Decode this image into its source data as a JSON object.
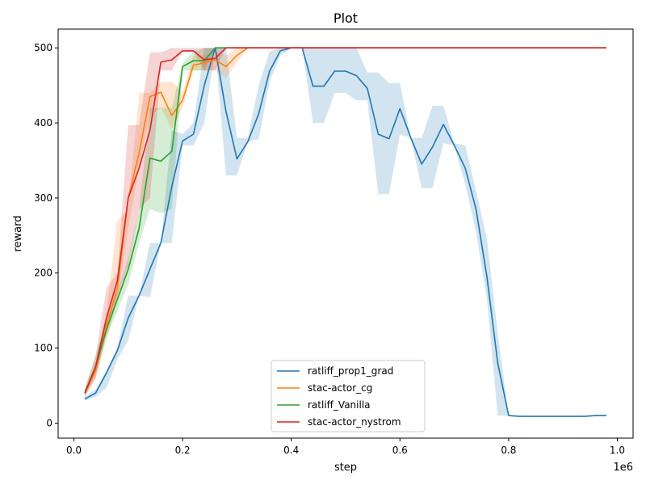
{
  "chart_data": {
    "type": "line",
    "title": "Plot",
    "xlabel": "step",
    "ylabel": "reward",
    "x_offset_label": "1e6",
    "xlim": [
      -0.029,
      1.029
    ],
    "ylim": [
      -20,
      525
    ],
    "xticks": [
      0.0,
      0.2,
      0.4,
      0.6,
      0.8,
      1.0
    ],
    "xtick_labels": [
      "0.0",
      "0.2",
      "0.4",
      "0.6",
      "0.8",
      "1.0"
    ],
    "yticks": [
      0,
      100,
      200,
      300,
      400,
      500
    ],
    "ytick_labels": [
      "0",
      "100",
      "200",
      "300",
      "400",
      "500"
    ],
    "grid": false,
    "legend_position": "bottom-center",
    "series": [
      {
        "name": "ratliff_prop1_grad",
        "color": "#1f77b4",
        "x": [
          0.02,
          0.04,
          0.06,
          0.08,
          0.1,
          0.12,
          0.14,
          0.16,
          0.18,
          0.2,
          0.22,
          0.24,
          0.26,
          0.28,
          0.3,
          0.32,
          0.34,
          0.36,
          0.38,
          0.4,
          0.42,
          0.44,
          0.46,
          0.48,
          0.5,
          0.52,
          0.54,
          0.56,
          0.58,
          0.6,
          0.62,
          0.64,
          0.66,
          0.68,
          0.7,
          0.72,
          0.74,
          0.76,
          0.78,
          0.8,
          0.82,
          0.84,
          0.86,
          0.88,
          0.9,
          0.92,
          0.94,
          0.96,
          0.98
        ],
        "y": [
          32,
          40,
          67,
          97,
          140,
          170,
          205,
          240,
          315,
          376,
          385,
          450,
          500,
          415,
          352,
          375,
          412,
          469,
          496,
          500,
          500,
          449,
          449,
          469,
          469,
          463,
          446,
          385,
          379,
          419,
          380,
          345,
          368,
          398,
          370,
          340,
          285,
          195,
          80,
          10,
          9,
          9,
          9,
          9,
          9,
          9,
          9,
          10,
          10
        ],
        "band_lower": [
          30,
          35,
          47,
          85,
          110,
          170,
          168,
          240,
          240,
          370,
          370,
          400,
          500,
          330,
          330,
          375,
          378,
          455,
          490,
          500,
          500,
          400,
          400,
          440,
          440,
          430,
          430,
          305,
          305,
          385,
          380,
          313,
          313,
          373,
          370,
          318,
          255,
          165,
          10,
          10,
          9,
          9,
          9,
          9,
          9,
          9,
          9,
          10,
          10
        ],
        "band_upper": [
          35,
          45,
          70,
          100,
          170,
          170,
          240,
          240,
          390,
          385,
          400,
          500,
          500,
          500,
          380,
          380,
          450,
          495,
          500,
          500,
          500,
          500,
          500,
          500,
          500,
          500,
          467,
          467,
          453,
          453,
          380,
          380,
          423,
          423,
          373,
          370,
          310,
          245,
          120,
          10,
          9,
          9,
          9,
          9,
          9,
          9,
          9,
          10,
          10
        ]
      },
      {
        "name": "stac-actor_cg",
        "color": "#ff7f0e",
        "x": [
          0.02,
          0.04,
          0.06,
          0.08,
          0.1,
          0.12,
          0.14,
          0.16,
          0.18,
          0.2,
          0.22,
          0.24,
          0.26,
          0.28,
          0.3,
          0.32,
          0.34,
          0.36,
          0.38,
          0.4,
          0.42,
          0.44,
          0.46,
          0.48,
          0.5,
          0.55,
          0.6,
          0.65,
          0.7,
          0.75,
          0.8,
          0.85,
          0.9,
          0.95,
          0.98
        ],
        "y": [
          40,
          70,
          130,
          180,
          300,
          360,
          435,
          441,
          410,
          430,
          477,
          480,
          484,
          475,
          490,
          500,
          500,
          500,
          500,
          500,
          500,
          500,
          500,
          500,
          500,
          500,
          500,
          500,
          500,
          500,
          500,
          500,
          500,
          500,
          500
        ],
        "band_lower": [
          35,
          60,
          110,
          165,
          260,
          340,
          410,
          420,
          392,
          420,
          470,
          470,
          470,
          460,
          480,
          500,
          500,
          500,
          500,
          500,
          500,
          500,
          500,
          500,
          500,
          500,
          500,
          500,
          500,
          500,
          500,
          500,
          500,
          500,
          500
        ],
        "band_upper": [
          45,
          80,
          150,
          270,
          285,
          440,
          440,
          455,
          455,
          440,
          490,
          490,
          495,
          490,
          500,
          500,
          500,
          500,
          500,
          500,
          500,
          500,
          500,
          500,
          500,
          500,
          500,
          500,
          500,
          500,
          500,
          500,
          500,
          500,
          500
        ]
      },
      {
        "name": "ratliff_Vanilla",
        "color": "#2ca02c",
        "x": [
          0.02,
          0.04,
          0.06,
          0.08,
          0.1,
          0.12,
          0.14,
          0.16,
          0.18,
          0.2,
          0.22,
          0.24,
          0.26,
          0.28,
          0.3,
          0.35,
          0.4,
          0.45,
          0.5,
          0.55,
          0.6,
          0.65,
          0.7,
          0.75,
          0.8,
          0.85,
          0.9,
          0.95,
          0.98
        ],
        "y": [
          40,
          75,
          125,
          165,
          205,
          260,
          353,
          349,
          362,
          475,
          483,
          483,
          500,
          500,
          500,
          500,
          500,
          500,
          500,
          500,
          500,
          500,
          500,
          500,
          500,
          500,
          500,
          500,
          500
        ],
        "band_lower": [
          35,
          65,
          115,
          150,
          185,
          240,
          285,
          280,
          285,
          470,
          470,
          470,
          500,
          500,
          500,
          500,
          500,
          500,
          500,
          500,
          500,
          500,
          500,
          500,
          500,
          500,
          500,
          500,
          500
        ],
        "band_upper": [
          45,
          90,
          140,
          175,
          220,
          285,
          420,
          420,
          420,
          480,
          495,
          500,
          500,
          500,
          500,
          500,
          500,
          500,
          500,
          500,
          500,
          500,
          500,
          500,
          500,
          500,
          500,
          500,
          500
        ]
      },
      {
        "name": "stac-actor_nystrom",
        "color": "#d62728",
        "x": [
          0.02,
          0.04,
          0.06,
          0.08,
          0.1,
          0.12,
          0.14,
          0.16,
          0.18,
          0.2,
          0.22,
          0.24,
          0.26,
          0.28,
          0.3,
          0.35,
          0.4,
          0.45,
          0.5,
          0.55,
          0.6,
          0.65,
          0.7,
          0.75,
          0.8,
          0.85,
          0.9,
          0.95,
          0.98
        ],
        "y": [
          40,
          75,
          140,
          190,
          300,
          340,
          390,
          481,
          484,
          496,
          496,
          484,
          486,
          500,
          500,
          500,
          500,
          500,
          500,
          500,
          500,
          500,
          500,
          500,
          500,
          500,
          500,
          500,
          500
        ],
        "band_lower": [
          35,
          60,
          120,
          170,
          210,
          285,
          300,
          470,
          470,
          495,
          495,
          470,
          470,
          500,
          500,
          500,
          500,
          500,
          500,
          500,
          500,
          500,
          500,
          500,
          500,
          500,
          500,
          500,
          500
        ],
        "band_upper": [
          45,
          90,
          180,
          200,
          397,
          397,
          494,
          494,
          500,
          500,
          500,
          500,
          500,
          500,
          500,
          500,
          500,
          500,
          500,
          500,
          500,
          500,
          500,
          500,
          500,
          500,
          500,
          500,
          500
        ]
      }
    ]
  }
}
